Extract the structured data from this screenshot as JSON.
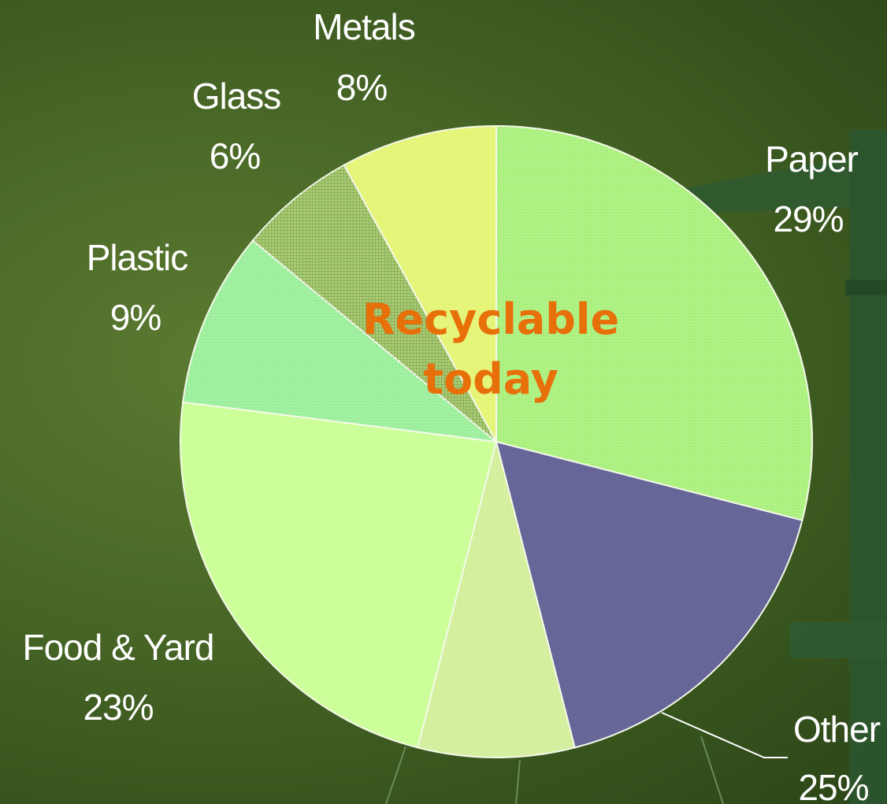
{
  "chart_data": {
    "type": "pie",
    "slices": [
      {
        "label": "Paper",
        "value": 29,
        "value_label": "29%",
        "color": "#a8f07a",
        "pattern": "grid-fine"
      },
      {
        "label": "Other",
        "value": 25,
        "value_label": "25%",
        "color": "#666699",
        "pattern": "none",
        "segments": [
          {
            "value": 17,
            "color": "#666699",
            "pattern": "none"
          },
          {
            "value": 8,
            "color": "#d2ee98",
            "pattern": "grid-fine"
          }
        ]
      },
      {
        "label": "Food & Yard",
        "value": 23,
        "value_label": "23%",
        "color": "#ccff99",
        "pattern": "none"
      },
      {
        "label": "Plastic",
        "value": 9,
        "value_label": "9%",
        "color": "#99ee99",
        "pattern": "grid-fine"
      },
      {
        "label": "Glass",
        "value": 6,
        "value_label": "6%",
        "color": "#a9cc73",
        "pattern": "grid-dark"
      },
      {
        "label": "Metals",
        "value": 8,
        "value_label": "8%",
        "color": "#e5f57a",
        "pattern": "none"
      }
    ],
    "start_angle_deg": 0,
    "direction": "clockwise",
    "annotation_lines": [
      "Recyclable",
      "today"
    ],
    "annotation_color": "#e8700a",
    "background_color": "#4a6a28",
    "label_color": "#ffffff"
  }
}
